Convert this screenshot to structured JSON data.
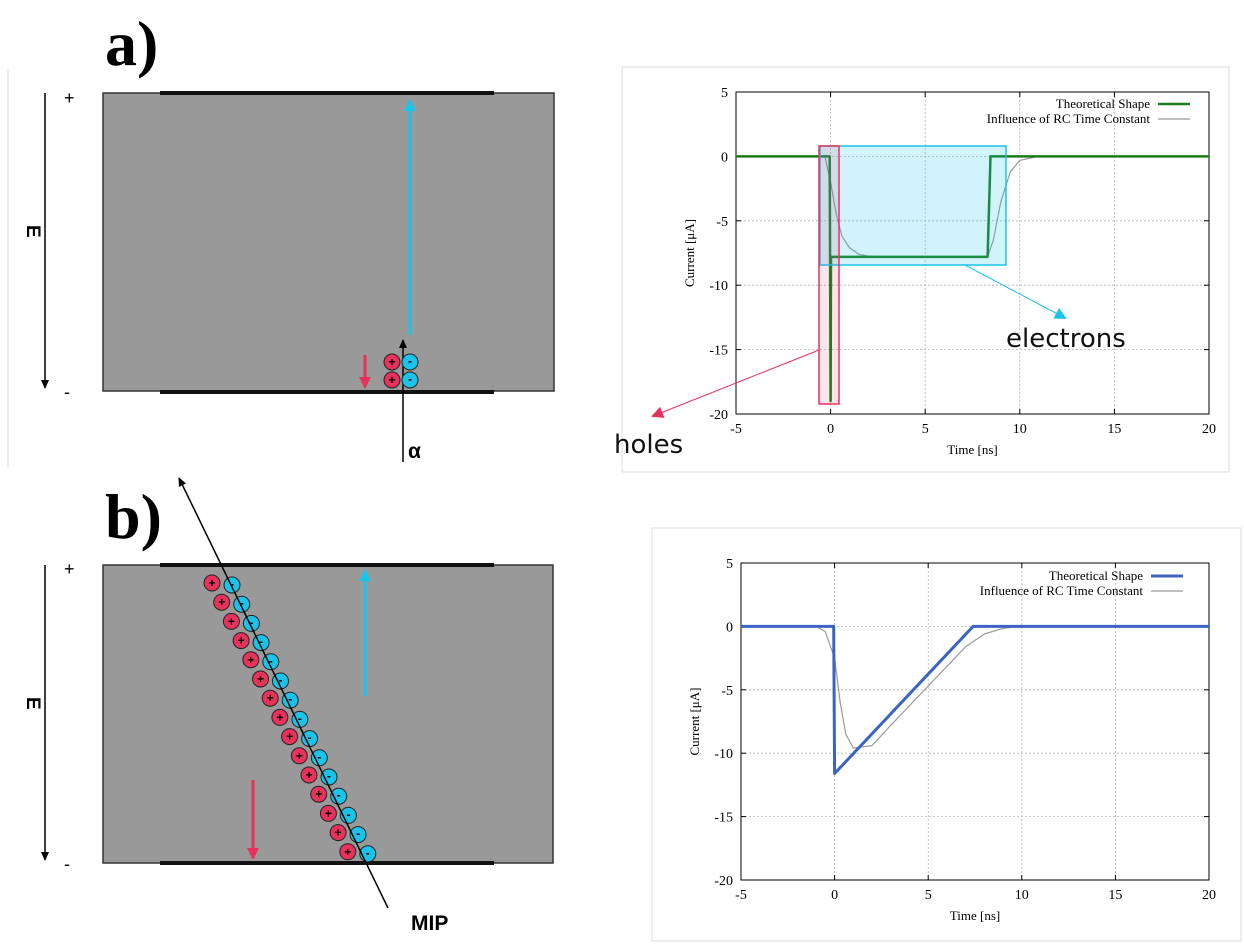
{
  "panel_a": {
    "label": "a)",
    "top_sign": "+",
    "bottom_sign": "-",
    "field_label": "E",
    "particle_label": "α",
    "holes_label": "holes",
    "electrons_label": "electrons"
  },
  "panel_b": {
    "label": "b)",
    "top_sign": "+",
    "bottom_sign": "-",
    "field_label": "E",
    "particle_label": "MIP"
  },
  "colors": {
    "hole": "#e8325c",
    "electron": "#19c3ea",
    "detector": "#999999",
    "green": "#1a7d1a",
    "blue": "#3a64c4"
  },
  "chart_data": [
    {
      "type": "line",
      "xlabel": "Time [ns]",
      "ylabel": "Current [μA]",
      "xlim": [
        -5,
        20
      ],
      "ylim": [
        -20,
        5
      ],
      "xticks": [
        "-5",
        "0",
        "5",
        "10",
        "15",
        "20"
      ],
      "yticks": [
        "5",
        "0",
        "-5",
        "-10",
        "-15",
        "-20"
      ],
      "grid": true,
      "legend_position": "top-right",
      "series": [
        {
          "name": "Theoretical Shape",
          "color": "#1a7d1a",
          "x": [
            -5,
            -0.05,
            0,
            0.02,
            0.4,
            8.3,
            8.45,
            20
          ],
          "y": [
            0,
            0,
            -19,
            -7.8,
            -7.8,
            -7.8,
            0,
            0
          ]
        },
        {
          "name": "Influence of RC Time Constant",
          "color": "#999999",
          "x": [
            -5,
            -0.3,
            0,
            0.3,
            0.6,
            1,
            1.5,
            2,
            3,
            8.3,
            8.6,
            9,
            9.5,
            10,
            11,
            20
          ],
          "y": [
            0,
            0,
            -2,
            -4.5,
            -6.2,
            -7.1,
            -7.6,
            -7.75,
            -7.8,
            -7.8,
            -6.5,
            -3.5,
            -1.2,
            -0.3,
            0,
            0
          ]
        }
      ]
    },
    {
      "type": "line",
      "xlabel": "Time [ns]",
      "ylabel": "Current [μA]",
      "xlim": [
        -5,
        20
      ],
      "ylim": [
        -20,
        5
      ],
      "xticks": [
        "-5",
        "0",
        "5",
        "10",
        "15",
        "20"
      ],
      "yticks": [
        "5",
        "0",
        "-5",
        "-10",
        "-15",
        "-20"
      ],
      "grid": true,
      "legend_position": "top-right",
      "series": [
        {
          "name": "Theoretical Shape",
          "color": "#3a64c4",
          "x": [
            -5,
            -0.05,
            0,
            7.4,
            20
          ],
          "y": [
            0,
            0,
            -11.6,
            0,
            0
          ]
        },
        {
          "name": "Influence of RC Time Constant",
          "color": "#999999",
          "x": [
            -5,
            -1,
            -0.5,
            0,
            0.3,
            0.6,
            1,
            2,
            3,
            5,
            7,
            8,
            9,
            10,
            20
          ],
          "y": [
            0,
            0,
            -0.4,
            -2.5,
            -6,
            -8.5,
            -9.6,
            -9.4,
            -7.8,
            -4.7,
            -1.6,
            -0.6,
            -0.15,
            0,
            0
          ]
        }
      ]
    }
  ]
}
